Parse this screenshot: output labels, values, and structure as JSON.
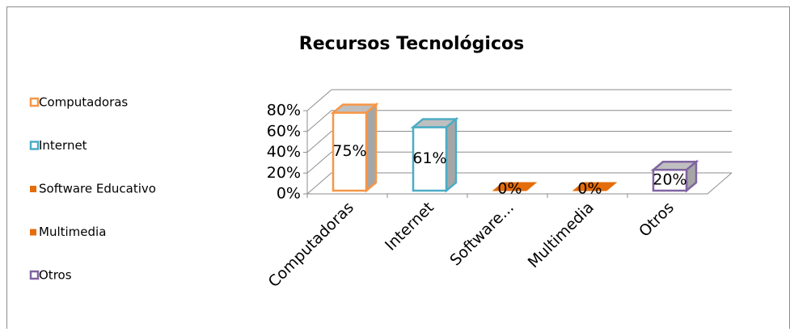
{
  "chart_data": {
    "type": "bar3d",
    "title": "Recursos Tecnológicos",
    "categories": [
      "Computadoras",
      "Internet",
      "Software...",
      "Multimedia",
      "Otros"
    ],
    "values": [
      75,
      61,
      0,
      0,
      20
    ],
    "value_labels": [
      "75%",
      "61%",
      "0%",
      "0%",
      "20%"
    ],
    "colors": [
      "#f79646",
      "#4bacc6",
      "#e46c0a",
      "#e46c0a",
      "#8064a2"
    ],
    "filled": [
      false,
      false,
      true,
      true,
      false
    ],
    "legend": [
      "Computadoras",
      "Internet",
      "Software Educativo",
      "Multimedia",
      "Otros"
    ],
    "legend_position": "left",
    "ylim": [
      0,
      80
    ],
    "yticks": [
      {
        "value": 0,
        "label": "0%"
      },
      {
        "value": 20,
        "label": "20%"
      },
      {
        "value": 40,
        "label": "40%"
      },
      {
        "value": 60,
        "label": "60%"
      },
      {
        "value": 80,
        "label": "80%"
      }
    ],
    "grid": true
  }
}
